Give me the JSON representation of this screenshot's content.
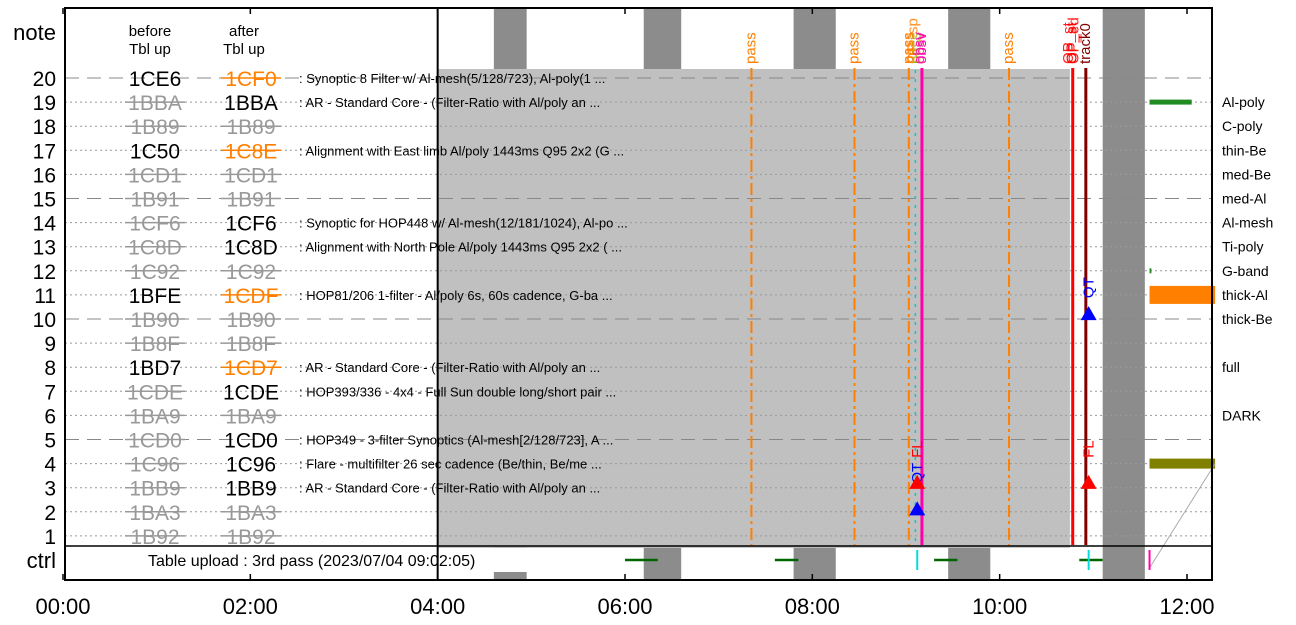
{
  "chart_data": {
    "type": "timeline",
    "x_axis": {
      "unit": "hours",
      "range": [
        0,
        12.3
      ],
      "ticks": [
        {
          "value": 0,
          "label": "00:00"
        },
        {
          "value": 2,
          "label": "02:00"
        },
        {
          "value": 4,
          "label": "04:00"
        },
        {
          "value": 6,
          "label": "06:00"
        },
        {
          "value": 8,
          "label": "08:00"
        },
        {
          "value": 10,
          "label": "10:00"
        },
        {
          "value": 12,
          "label": "12:00"
        }
      ]
    },
    "y_axis": {
      "top_label": "note",
      "bottom_label": "ctrl",
      "rows": [
        "20",
        "19",
        "18",
        "17",
        "16",
        "15",
        "14",
        "13",
        "12",
        "11",
        "10",
        "9",
        "8",
        "7",
        "6",
        "5",
        "4",
        "3",
        "2",
        "1"
      ]
    },
    "column_headers": {
      "before": [
        "before",
        "Tbl up"
      ],
      "after": [
        "after",
        "Tbl up"
      ]
    },
    "tables": [
      {
        "row": 20,
        "before": "1CE6",
        "before_style": "black",
        "after": "1CF0",
        "after_style": "orange-struck",
        "desc": ": Synoptic 8 Filter w/ Al-mesh(5/128/723), Al-poly(1 ..."
      },
      {
        "row": 19,
        "before": "1BBA",
        "before_style": "gray-struck",
        "after": "1BBA",
        "after_style": "black",
        "desc": ": AR - Standard Core - (Filter-Ratio with Al/poly an ..."
      },
      {
        "row": 18,
        "before": "1B89",
        "before_style": "gray-struck",
        "after": "1B89",
        "after_style": "gray-struck",
        "desc": ""
      },
      {
        "row": 17,
        "before": "1C50",
        "before_style": "black",
        "after": "1C8E",
        "after_style": "orange-struck",
        "desc": ": Alignment with East limb Al/poly 1443ms Q95 2x2 (G ..."
      },
      {
        "row": 16,
        "before": "1CD1",
        "before_style": "gray-struck",
        "after": "1CD1",
        "after_style": "gray-struck",
        "desc": ""
      },
      {
        "row": 15,
        "before": "1B91",
        "before_style": "gray-struck",
        "after": "1B91",
        "after_style": "gray-struck",
        "desc": ""
      },
      {
        "row": 14,
        "before": "1CF6",
        "before_style": "gray-struck",
        "after": "1CF6",
        "after_style": "black",
        "desc": ": Synoptic for HOP448 w/ Al-mesh(12/181/1024), Al-po ..."
      },
      {
        "row": 13,
        "before": "1C8D",
        "before_style": "gray-struck",
        "after": "1C8D",
        "after_style": "black",
        "desc": ": Alignment with North Pole Al/poly 1443ms Q95 2x2 ( ..."
      },
      {
        "row": 12,
        "before": "1C92",
        "before_style": "gray-struck",
        "after": "1C92",
        "after_style": "gray-struck",
        "desc": ""
      },
      {
        "row": 11,
        "before": "1BFE",
        "before_style": "black",
        "after": "1CDF",
        "after_style": "orange-struck",
        "desc": ": HOP81/206 1-filter - Al/poly 6s, 60s cadence, G-ba ..."
      },
      {
        "row": 10,
        "before": "1B90",
        "before_style": "gray-struck",
        "after": "1B90",
        "after_style": "gray-struck",
        "desc": ""
      },
      {
        "row": 9,
        "before": "1B8F",
        "before_style": "gray-struck",
        "after": "1B8F",
        "after_style": "gray-struck",
        "desc": ""
      },
      {
        "row": 8,
        "before": "1BD7",
        "before_style": "black",
        "after": "1CD7",
        "after_style": "orange-struck",
        "desc": ": AR - Standard Core - (Filter-Ratio with Al/poly an ..."
      },
      {
        "row": 7,
        "before": "1CDE",
        "before_style": "gray-struck",
        "after": "1CDE",
        "after_style": "black",
        "desc": ": HOP393/336 - 4x4 - Full Sun double long/short pair ..."
      },
      {
        "row": 6,
        "before": "1BA9",
        "before_style": "gray-struck",
        "after": "1BA9",
        "after_style": "gray-struck",
        "desc": ""
      },
      {
        "row": 5,
        "before": "1CD0",
        "before_style": "gray-struck",
        "after": "1CD0",
        "after_style": "black",
        "desc": ": HOP349 - 3-filter Synoptics (Al-mesh[2/128/723], A ..."
      },
      {
        "row": 4,
        "before": "1C96",
        "before_style": "gray-struck",
        "after": "1C96",
        "after_style": "black",
        "desc": ": Flare - multifilter 26 sec cadence (Be/thin, Be/me ..."
      },
      {
        "row": 3,
        "before": "1BB9",
        "before_style": "gray-struck",
        "after": "1BB9",
        "after_style": "black",
        "desc": ": AR - Standard Core - (Filter-Ratio with Al/poly an ..."
      },
      {
        "row": 2,
        "before": "1BA3",
        "before_style": "gray-struck",
        "after": "1BA3",
        "after_style": "gray-struck",
        "desc": ""
      },
      {
        "row": 1,
        "before": "1B92",
        "before_style": "gray-struck",
        "after": "1B92",
        "after_style": "gray-struck",
        "desc": ""
      }
    ],
    "ctrl_text": "Table upload : 3rd pass (2023/07/04 09:02:05)",
    "active_table": {
      "row": 20,
      "x_start": 4.0,
      "x_end": 10.75,
      "fill": "#c0c0c0"
    },
    "dark_bands": [
      {
        "x_start": 4.6,
        "x_end": 4.95
      },
      {
        "x_start": 6.2,
        "x_end": 6.6
      },
      {
        "x_start": 7.8,
        "x_end": 8.25
      },
      {
        "x_start": 9.45,
        "x_end": 9.9
      },
      {
        "x_start": 11.1,
        "x_end": 11.55
      }
    ],
    "events": [
      {
        "label": "pass",
        "x": 7.35,
        "color": "#ff8000",
        "style": "dashdot"
      },
      {
        "label": "pass",
        "x": 8.45,
        "color": "#ff8000",
        "style": "dashdot"
      },
      {
        "label": "pass",
        "x": 9.03,
        "color": "#ff8000",
        "style": "dashdot"
      },
      {
        "label": "obsv",
        "x": 9.17,
        "color": "#ff00aa",
        "style": "solid"
      },
      {
        "label": "pass",
        "x": 10.1,
        "color": "#ff8000",
        "style": "dashdot"
      },
      {
        "label": "OP_st",
        "x": 10.78,
        "color": "#ff0000",
        "style": "solid"
      },
      {
        "label": "track0",
        "x": 10.92,
        "color": "#800000",
        "style": "solid"
      }
    ],
    "event_overlay_labels": [
      "pass",
      "OP_sp",
      "pass",
      "obsv",
      "OP_st",
      "OP_ed"
    ],
    "markers": [
      {
        "label": "QT",
        "x": 9.12,
        "row": 3.6,
        "color": "#0000ff",
        "triangle_row": 2.1,
        "triangle_color": "#0000ff"
      },
      {
        "label": "FL",
        "x": 9.12,
        "row": 4.6,
        "color": "#ff0000",
        "triangle_row": 3.2,
        "triangle_color": "#ff0000"
      },
      {
        "label": "QT",
        "x": 10.95,
        "row": 11.3,
        "color": "#0000ff",
        "triangle_row": 10.2,
        "triangle_color": "#0000ff"
      },
      {
        "label": "FL",
        "x": 10.95,
        "row": 4.6,
        "color": "#ff0000",
        "triangle_row": 3.2,
        "triangle_color": "#ff0000"
      }
    ],
    "ctrl_segments": [
      {
        "x_start": 6.0,
        "x_end": 6.35,
        "color": "#006600"
      },
      {
        "x_start": 7.6,
        "x_end": 7.85,
        "color": "#006600"
      },
      {
        "x_start": 9.3,
        "x_end": 9.55,
        "color": "#006600"
      },
      {
        "x_start": 10.85,
        "x_end": 11.1,
        "color": "#006600"
      }
    ],
    "ctrl_ticks": [
      {
        "x": 9.12,
        "color": "#00dddd"
      },
      {
        "x": 10.95,
        "color": "#00dddd"
      },
      {
        "x": 11.6,
        "color": "#ff00aa"
      }
    ],
    "filter_labels": [
      {
        "row": 19,
        "label": "Al-poly"
      },
      {
        "row": 18,
        "label": "C-poly"
      },
      {
        "row": 17,
        "label": "thin-Be"
      },
      {
        "row": 16,
        "label": "med-Be"
      },
      {
        "row": 15,
        "label": "med-Al"
      },
      {
        "row": 14,
        "label": "Al-mesh"
      },
      {
        "row": 13,
        "label": "Ti-poly"
      },
      {
        "row": 12,
        "label": "G-band"
      },
      {
        "row": 11,
        "label": "thick-Al"
      },
      {
        "row": 10,
        "label": "thick-Be"
      },
      {
        "row": 8,
        "label": "full"
      },
      {
        "row": 6,
        "label": "DARK"
      }
    ],
    "filter_bars": [
      {
        "row": 19,
        "x_start": 11.6,
        "x_end": 12.05,
        "color": "#228b22",
        "thickness": "thin"
      },
      {
        "row": 12,
        "x_start": 11.6,
        "x_end": 11.62,
        "color": "#228b22",
        "thickness": "thin"
      },
      {
        "row": 11,
        "x_start": 11.6,
        "x_end": 12.3,
        "color": "#ff8000",
        "thickness": "thick"
      },
      {
        "row": 4,
        "x_start": 11.6,
        "x_end": 12.3,
        "color": "#808000",
        "thickness": "medium"
      }
    ],
    "colors": {
      "orange": "#ff8000",
      "struck_gray": "#999999",
      "band_gray": "#8c8c8c",
      "active_gray": "#c0c0c0"
    }
  }
}
